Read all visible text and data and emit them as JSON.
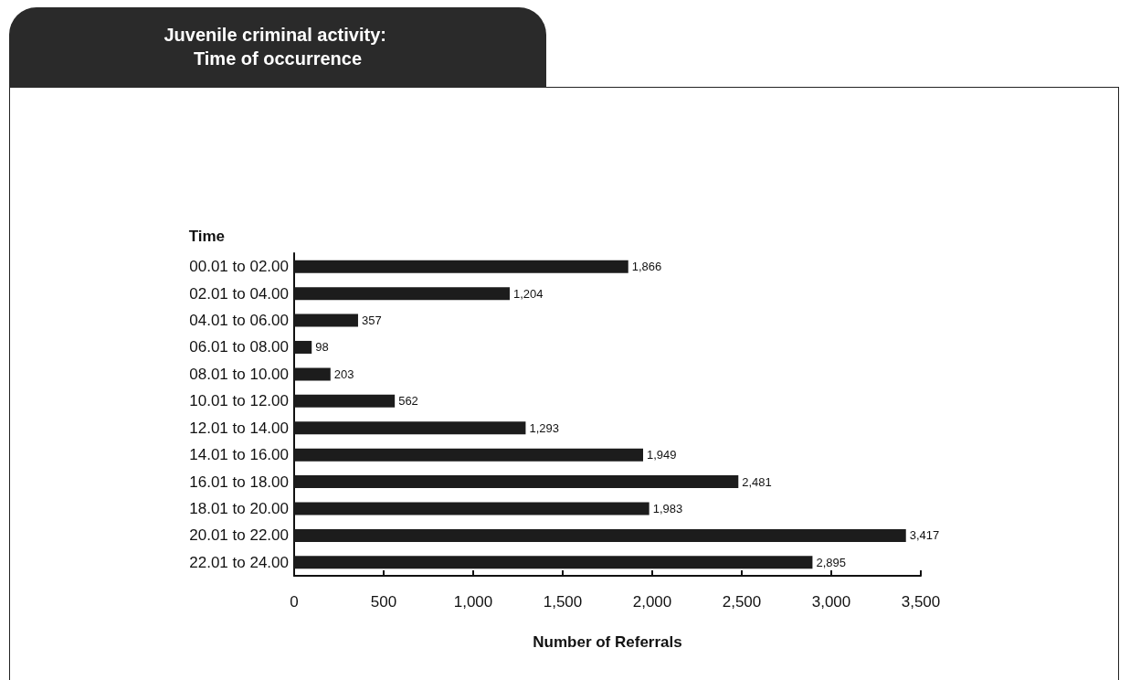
{
  "chart_data": {
    "type": "bar",
    "orientation": "horizontal",
    "title": "Juvenile criminal activity: Time of occurrence",
    "ylabel": "Time",
    "xlabel": "Number of Referrals",
    "categories": [
      "00.01 to 02.00",
      "02.01 to 04.00",
      "04.01 to 06.00",
      "06.01 to 08.00",
      "08.01 to 10.00",
      "10.01 to 12.00",
      "12.01 to 14.00",
      "14.01 to 16.00",
      "16.01 to 18.00",
      "18.01 to 20.00",
      "20.01 to 22.00",
      "22.01 to 24.00"
    ],
    "values": [
      1866,
      1204,
      357,
      98,
      203,
      562,
      1293,
      1949,
      2481,
      1983,
      3417,
      2895
    ],
    "value_labels": [
      "1,866",
      "1,204",
      "357",
      "98",
      "203",
      "562",
      "1,293",
      "1,949",
      "2,481",
      "1,983",
      "3,417",
      "2,895"
    ],
    "color": "#1c1c1c",
    "xlim": [
      0,
      3500
    ],
    "xticks": [
      0,
      500,
      {
        "value": 1000,
        "label": "1,000"
      },
      {
        "value": 1500,
        "label": "1,500"
      },
      {
        "value": 2000,
        "label": "2,000"
      },
      {
        "value": 2500,
        "label": "2,500"
      },
      {
        "value": 3000,
        "label": "3,000"
      },
      {
        "value": 3500,
        "label": "3,500"
      }
    ],
    "grid": false
  }
}
